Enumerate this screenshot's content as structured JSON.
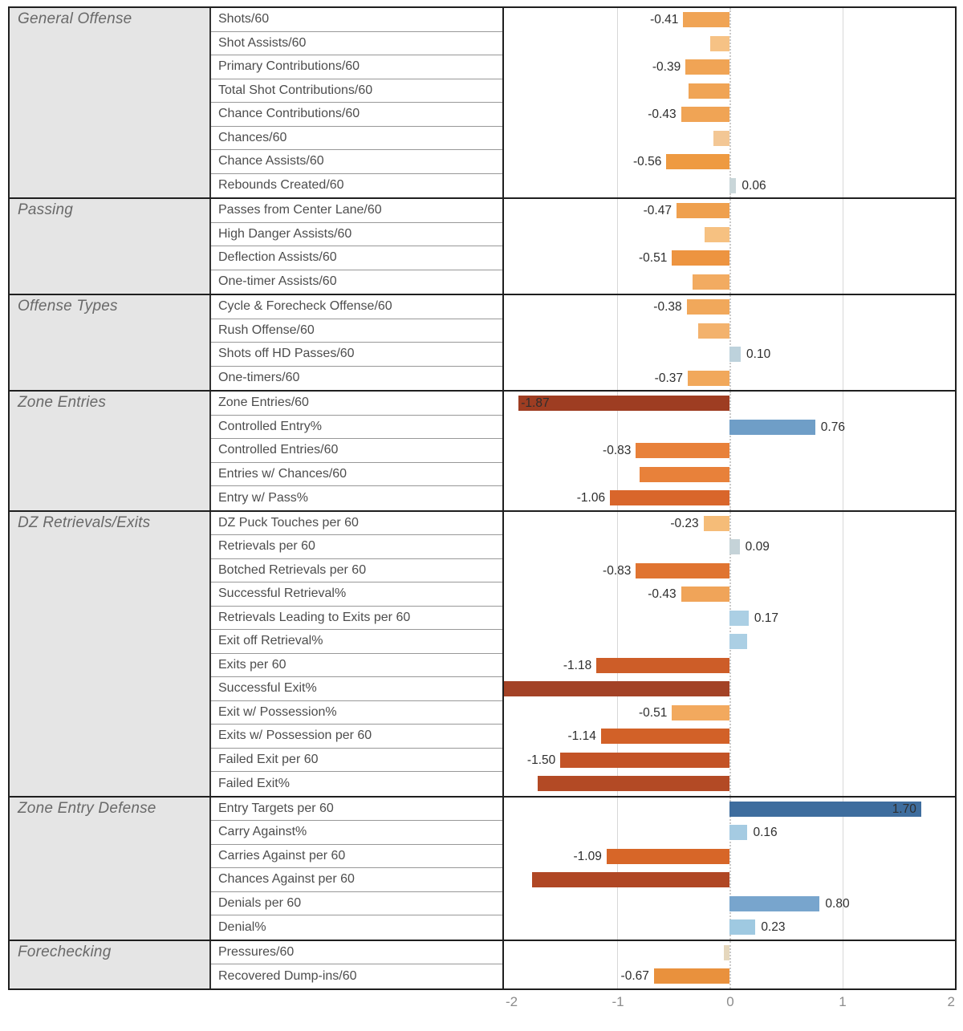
{
  "chart_data": {
    "type": "bar",
    "orientation": "horizontal",
    "title": "",
    "xlim": [
      -2,
      2
    ],
    "zero_line": 0,
    "gridlines": [
      -1,
      1
    ],
    "grid": "vertical gridlines at -1 and +1, dotted vertical zero line",
    "legend": "none",
    "axis_ticks": [
      {
        "value": -2,
        "label": "-2"
      },
      {
        "value": -1,
        "label": "-1"
      },
      {
        "value": 0,
        "label": "0"
      },
      {
        "value": 1,
        "label": "1"
      },
      {
        "value": 2,
        "label": "2"
      }
    ],
    "sections": [
      {
        "category": "General Offense",
        "rows": [
          {
            "metric": "Shots/60",
            "value": -0.41,
            "label": "-0.41",
            "label_pos": "left",
            "color": "#f0a455"
          },
          {
            "metric": "Shot Assists/60",
            "value": -0.17,
            "label": "",
            "label_pos": "none",
            "color": "#f6c285"
          },
          {
            "metric": "Primary Contributions/60",
            "value": -0.39,
            "label": "-0.39",
            "label_pos": "left",
            "color": "#f0a455"
          },
          {
            "metric": "Total Shot Contributions/60",
            "value": -0.36,
            "label": "",
            "label_pos": "none",
            "color": "#f0a455"
          },
          {
            "metric": "Chance Contributions/60",
            "value": -0.43,
            "label": "-0.43",
            "label_pos": "left",
            "color": "#f0a455"
          },
          {
            "metric": "Chances/60",
            "value": -0.14,
            "label": "",
            "label_pos": "none",
            "color": "#f3c795"
          },
          {
            "metric": "Chance Assists/60",
            "value": -0.56,
            "label": "-0.56",
            "label_pos": "left",
            "color": "#ee9a41"
          },
          {
            "metric": "Rebounds Created/60",
            "value": 0.06,
            "label": "0.06",
            "label_pos": "right",
            "color": "#c9d6d9"
          }
        ]
      },
      {
        "category": "Passing",
        "rows": [
          {
            "metric": "Passes from Center Lane/60",
            "value": -0.47,
            "label": "-0.47",
            "label_pos": "left",
            "color": "#efa04e"
          },
          {
            "metric": "High Danger Assists/60",
            "value": -0.22,
            "label": "",
            "label_pos": "none",
            "color": "#f6c181"
          },
          {
            "metric": "Deflection Assists/60",
            "value": -0.51,
            "label": "-0.51",
            "label_pos": "left",
            "color": "#ed9440"
          },
          {
            "metric": "One-timer Assists/60",
            "value": -0.33,
            "label": "",
            "label_pos": "none",
            "color": "#f2ab61"
          }
        ]
      },
      {
        "category": "Offense Types",
        "rows": [
          {
            "metric": "Cycle & Forecheck Offense/60",
            "value": -0.38,
            "label": "-0.38",
            "label_pos": "left",
            "color": "#f1a85b"
          },
          {
            "metric": "Rush Offense/60",
            "value": -0.28,
            "label": "",
            "label_pos": "none",
            "color": "#f3b26d"
          },
          {
            "metric": "Shots off HD Passes/60",
            "value": 0.1,
            "label": "0.10",
            "label_pos": "right",
            "color": "#bdd2dc"
          },
          {
            "metric": "One-timers/60",
            "value": -0.37,
            "label": "-0.37",
            "label_pos": "left",
            "color": "#f1a85b"
          }
        ]
      },
      {
        "category": "Zone Entries",
        "rows": [
          {
            "metric": "Zone Entries/60",
            "value": -1.87,
            "label": "-1.87",
            "label_pos": "inside-left",
            "color": "#9e3d22"
          },
          {
            "metric": "Controlled Entry%",
            "value": 0.76,
            "label": "0.76",
            "label_pos": "right",
            "color": "#6f9ec7"
          },
          {
            "metric": "Controlled Entries/60",
            "value": -0.83,
            "label": "-0.83",
            "label_pos": "left",
            "color": "#e8813a"
          },
          {
            "metric": "Entries w/ Chances/60",
            "value": -0.8,
            "label": "",
            "label_pos": "none",
            "color": "#e8813a"
          },
          {
            "metric": "Entry w/ Pass%",
            "value": -1.06,
            "label": "-1.06",
            "label_pos": "left",
            "color": "#d9662b"
          }
        ]
      },
      {
        "category": "DZ Retrievals/Exits",
        "rows": [
          {
            "metric": "DZ Puck Touches per 60",
            "value": -0.23,
            "label": "-0.23",
            "label_pos": "left",
            "color": "#f5bc78"
          },
          {
            "metric": "Retrievals per 60",
            "value": 0.09,
            "label": "0.09",
            "label_pos": "right",
            "color": "#c5d3d8"
          },
          {
            "metric": "Botched Retrievals per 60",
            "value": -0.83,
            "label": "-0.83",
            "label_pos": "left",
            "color": "#e07431"
          },
          {
            "metric": "Successful Retrieval%",
            "value": -0.43,
            "label": "-0.43",
            "label_pos": "left",
            "color": "#f0a459"
          },
          {
            "metric": "Retrievals Leading to Exits per 60",
            "value": 0.17,
            "label": "0.17",
            "label_pos": "right",
            "color": "#abcfe4"
          },
          {
            "metric": "Exit off Retrieval%",
            "value": 0.16,
            "label": "",
            "label_pos": "none",
            "color": "#abcfe4"
          },
          {
            "metric": "Exits per 60",
            "value": -1.18,
            "label": "-1.18",
            "label_pos": "left",
            "color": "#cd5d28"
          },
          {
            "metric": "Successful Exit%",
            "value": -2.0,
            "label": "",
            "label_pos": "none",
            "color": "#a34226"
          },
          {
            "metric": "Exit w/ Possession%",
            "value": -0.51,
            "label": "-0.51",
            "label_pos": "left",
            "color": "#f2a95e"
          },
          {
            "metric": "Exits w/ Possession per 60",
            "value": -1.14,
            "label": "-1.14",
            "label_pos": "left",
            "color": "#d26128"
          },
          {
            "metric": "Failed Exit per 60",
            "value": -1.5,
            "label": "-1.50",
            "label_pos": "left",
            "color": "#c35326"
          },
          {
            "metric": "Failed Exit%",
            "value": -1.7,
            "label": "",
            "label_pos": "none",
            "color": "#b34a25"
          }
        ]
      },
      {
        "category": "Zone Entry Defense",
        "rows": [
          {
            "metric": "Entry Targets per 60",
            "value": 1.7,
            "label": "1.70",
            "label_pos": "inside-right",
            "color": "#3e6d9e"
          },
          {
            "metric": "Carry Against%",
            "value": 0.16,
            "label": "0.16",
            "label_pos": "right",
            "color": "#a5cbe2"
          },
          {
            "metric": "Carries Against per 60",
            "value": -1.09,
            "label": "-1.09",
            "label_pos": "left",
            "color": "#d76628"
          },
          {
            "metric": "Chances Against per 60",
            "value": -1.75,
            "label": "",
            "label_pos": "none",
            "color": "#b04724"
          },
          {
            "metric": "Denials per 60",
            "value": 0.8,
            "label": "0.80",
            "label_pos": "right",
            "color": "#78a5cd"
          },
          {
            "metric": "Denial%",
            "value": 0.23,
            "label": "0.23",
            "label_pos": "right",
            "color": "#9fc9e1"
          }
        ]
      },
      {
        "category": "Forechecking",
        "rows": [
          {
            "metric": "Pressures/60",
            "value": -0.05,
            "label": "",
            "label_pos": "none",
            "color": "#e5d7bd"
          },
          {
            "metric": "Recovered Dump-ins/60",
            "value": -0.67,
            "label": "-0.67",
            "label_pos": "left",
            "color": "#e9913d"
          }
        ]
      }
    ]
  },
  "style_colors": {
    "gridline": "#d8d8d8",
    "zero_line": "#c9c9c9",
    "category_bg": "#e5e5e5",
    "section_border": "#1f1f1f",
    "row_border": "#989898",
    "metric_text": "#4d4d4d",
    "category_text": "#696969",
    "value_text": "#2e2e2e",
    "axis_text": "#8c8c8c"
  }
}
